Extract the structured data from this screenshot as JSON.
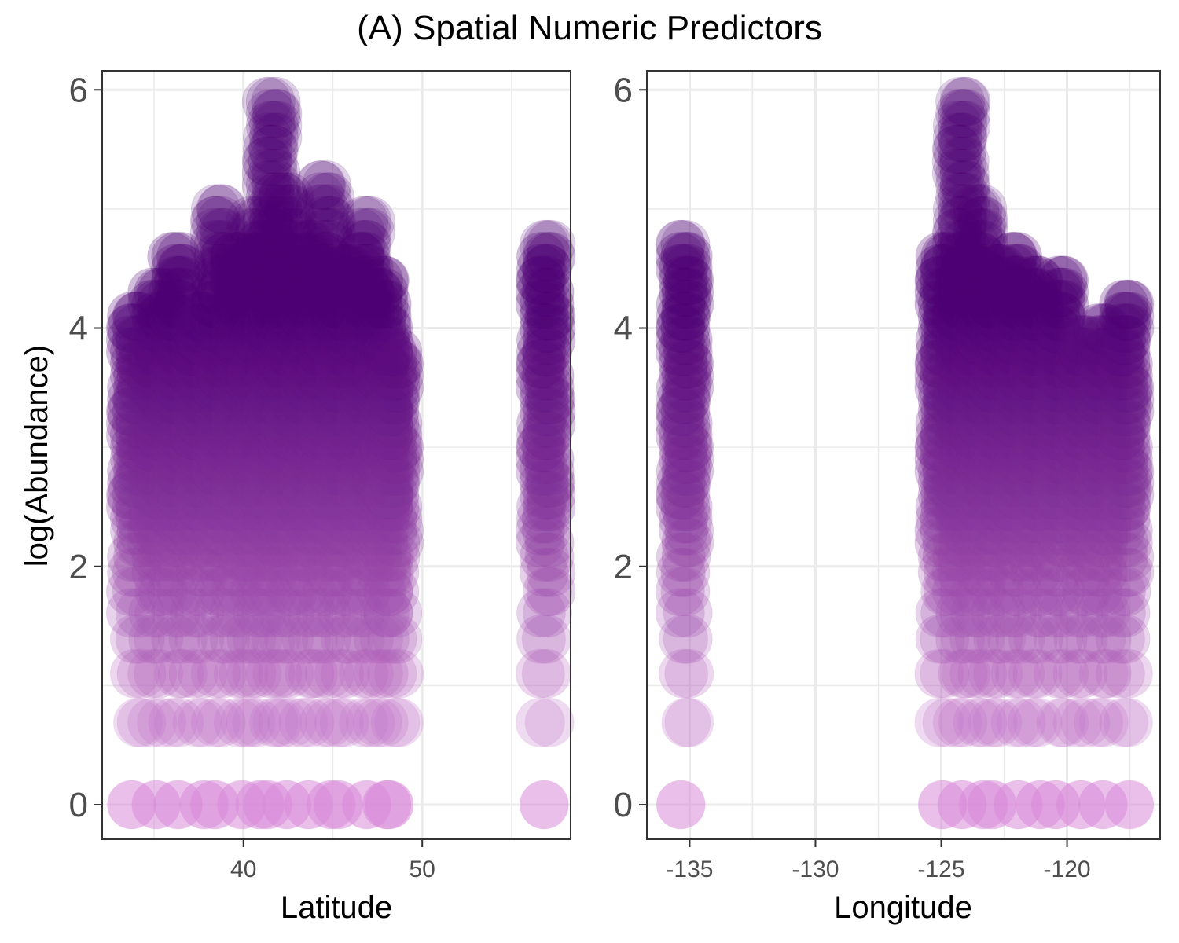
{
  "title": "(A) Spatial Numeric Predictors",
  "ylabel": "log(Abundance)",
  "point_color_low": "#d98ad8",
  "point_color_high": "#4f0075",
  "chart_data": [
    {
      "type": "scatter",
      "xlabel": "Latitude",
      "ylabel": "log(Abundance)",
      "xlim": [
        32.1,
        58.3
      ],
      "ylim": [
        -0.29,
        6.16
      ],
      "x_ticks": [
        40,
        50
      ],
      "x_tick_labels": [
        "40",
        "50"
      ],
      "y_ticks": [
        0,
        2,
        4,
        6
      ],
      "y_tick_labels": [
        "0",
        "2",
        "4",
        "6"
      ],
      "grid": true,
      "columns": [
        {
          "x": 34.0,
          "ymax": 4.1
        },
        {
          "x": 35.2,
          "ymax": 4.3
        },
        {
          "x": 36.3,
          "ymax": 4.6
        },
        {
          "x": 37.5,
          "ymax": 4.1
        },
        {
          "x": 38.7,
          "ymax": 5.0
        },
        {
          "x": 39.8,
          "ymax": 4.6
        },
        {
          "x": 40.7,
          "ymax": 4.9
        },
        {
          "x": 41.6,
          "ymax": 5.9
        },
        {
          "x": 42.5,
          "ymax": 5.1
        },
        {
          "x": 43.6,
          "ymax": 4.7
        },
        {
          "x": 44.6,
          "ymax": 5.2
        },
        {
          "x": 45.6,
          "ymax": 4.5
        },
        {
          "x": 46.8,
          "ymax": 4.9
        },
        {
          "x": 47.8,
          "ymax": 4.4
        },
        {
          "x": 48.4,
          "ymax": 3.8
        },
        {
          "x": 56.9,
          "ymax": 4.7
        }
      ]
    },
    {
      "type": "scatter",
      "xlabel": "Longitude",
      "ylabel": "",
      "xlim": [
        -136.7,
        -116.3
      ],
      "ylim": [
        -0.29,
        6.16
      ],
      "x_ticks": [
        -135,
        -130,
        -125,
        -120
      ],
      "x_tick_labels": [
        "-135",
        "-130",
        "-125",
        "-120"
      ],
      "y_ticks": [
        0,
        2,
        4,
        6
      ],
      "y_tick_labels": [
        "0",
        "2",
        "4",
        "6"
      ],
      "grid": true,
      "columns": [
        {
          "x": -135.2,
          "ymax": 4.7
        },
        {
          "x": -124.9,
          "ymax": 4.6
        },
        {
          "x": -124.2,
          "ymax": 5.9
        },
        {
          "x": -123.5,
          "ymax": 5.0
        },
        {
          "x": -122.8,
          "ymax": 4.5
        },
        {
          "x": -122.0,
          "ymax": 4.6
        },
        {
          "x": -121.2,
          "ymax": 4.4
        },
        {
          "x": -120.3,
          "ymax": 4.4
        },
        {
          "x": -119.4,
          "ymax": 3.9
        },
        {
          "x": -118.6,
          "ymax": 4.0
        },
        {
          "x": -117.7,
          "ymax": 4.2
        }
      ]
    }
  ]
}
